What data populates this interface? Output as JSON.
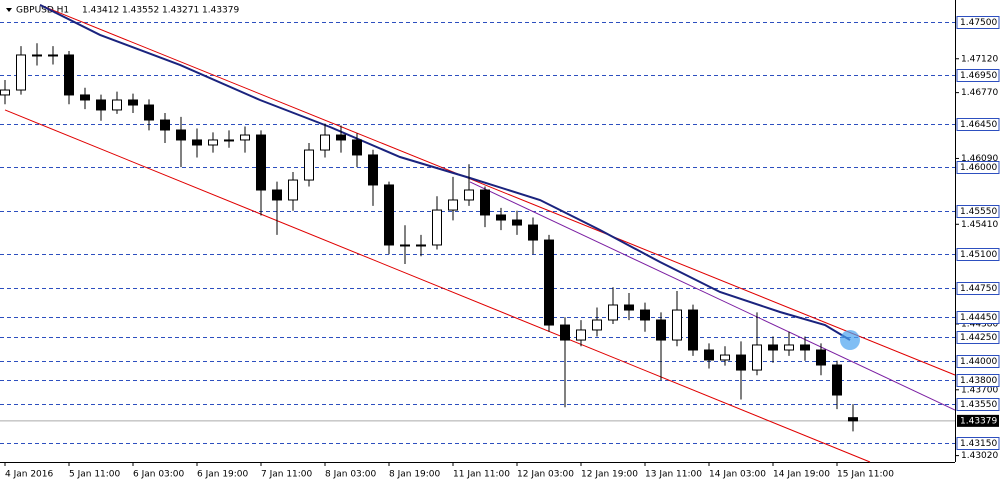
{
  "header": {
    "symbol": "GBPUSD,H1",
    "ohlc": [
      1.43412,
      1.43552,
      1.43271,
      1.43379
    ]
  },
  "chart_data": {
    "type": "candlestick",
    "x": [
      0,
      4,
      8,
      12,
      16,
      20,
      24,
      28,
      32,
      36,
      40,
      44,
      48,
      52,
      56,
      60,
      64,
      68,
      72,
      76,
      80,
      84,
      88,
      92,
      96,
      100,
      104,
      108,
      112,
      116,
      120,
      124,
      128,
      132,
      136,
      140,
      144,
      148,
      152,
      156,
      160,
      164,
      168,
      172,
      176,
      180,
      184,
      188,
      192,
      196,
      200,
      204,
      208,
      212
    ],
    "open": [
      1.46746,
      1.46797,
      1.47159,
      1.47159,
      1.47159,
      1.46746,
      1.46694,
      1.46591,
      1.46694,
      1.46642,
      1.46487,
      1.46384,
      1.46281,
      1.46229,
      1.46281,
      1.46281,
      1.46332,
      1.45764,
      1.45661,
      1.45867,
      1.46177,
      1.46332,
      1.46281,
      1.46126,
      1.45816,
      1.45196,
      1.45196,
      1.45196,
      1.45557,
      1.45661,
      1.45764,
      1.45506,
      1.45454,
      1.45402,
      1.45247,
      1.44369,
      1.44214,
      1.44318,
      1.44421,
      1.44576,
      1.44524,
      1.44421,
      1.44214,
      1.44524,
      1.44111,
      1.44008,
      1.44059,
      1.43904,
      1.44163,
      1.44111,
      1.44163,
      1.44111,
      1.43956,
      1.43412
    ],
    "high": [
      1.469,
      1.4725,
      1.4728,
      1.4725,
      1.472,
      1.4682,
      1.4675,
      1.4678,
      1.4676,
      1.467,
      1.4656,
      1.4652,
      1.464,
      1.4636,
      1.4638,
      1.4642,
      1.4638,
      1.4585,
      1.4595,
      1.4625,
      1.4645,
      1.4643,
      1.4635,
      1.4618,
      1.4585,
      1.454,
      1.453,
      1.457,
      1.459,
      1.4603,
      1.458,
      1.4558,
      1.4555,
      1.4548,
      1.453,
      1.4445,
      1.4442,
      1.4455,
      1.4476,
      1.447,
      1.446,
      1.445,
      1.4472,
      1.4458,
      1.4418,
      1.4415,
      1.442,
      1.445,
      1.4425,
      1.443,
      1.4425,
      1.4418,
      1.44,
      1.43552
    ],
    "low": [
      1.4665,
      1.4675,
      1.4705,
      1.4706,
      1.4665,
      1.466,
      1.4648,
      1.4655,
      1.4656,
      1.4638,
      1.4625,
      1.46,
      1.461,
      1.4615,
      1.462,
      1.4615,
      1.455,
      1.453,
      1.4555,
      1.458,
      1.461,
      1.4615,
      1.46,
      1.456,
      1.451,
      1.45,
      1.4508,
      1.4515,
      1.4545,
      1.456,
      1.4538,
      1.4535,
      1.453,
      1.451,
      1.443,
      1.4352,
      1.4415,
      1.4425,
      1.4438,
      1.4442,
      1.443,
      1.438,
      1.4415,
      1.4405,
      1.4392,
      1.4395,
      1.436,
      1.4385,
      1.4398,
      1.4405,
      1.44,
      1.4385,
      1.435,
      1.43271
    ],
    "close": [
      1.46797,
      1.47159,
      1.47159,
      1.47159,
      1.46746,
      1.46694,
      1.46591,
      1.46694,
      1.46642,
      1.46487,
      1.46384,
      1.46281,
      1.46229,
      1.46281,
      1.46281,
      1.46332,
      1.45764,
      1.45661,
      1.45867,
      1.46177,
      1.46332,
      1.46281,
      1.46126,
      1.45816,
      1.45196,
      1.45196,
      1.45196,
      1.45557,
      1.45661,
      1.45764,
      1.45506,
      1.45454,
      1.45402,
      1.45247,
      1.44369,
      1.44214,
      1.44318,
      1.44421,
      1.44576,
      1.44524,
      1.44421,
      1.44214,
      1.44524,
      1.44111,
      1.44008,
      1.44059,
      1.43904,
      1.44163,
      1.44111,
      1.44163,
      1.44111,
      1.43956,
      1.43646,
      1.43379
    ],
    "ma": {
      "color": "#1a237e",
      "x": [
        8.75,
        23.75,
        43.75,
        63.75,
        81.25,
        98.75,
        116.25,
        133.75,
        148.75,
        163.75,
        178.75,
        193.75,
        205,
        211.25
      ],
      "values": [
        1.47676,
        1.47366,
        1.47056,
        1.46694,
        1.46415,
        1.46105,
        1.45888,
        1.45661,
        1.45351,
        1.4502,
        1.4471,
        1.44504,
        1.44369,
        1.44214
      ]
    },
    "trendlines": [
      {
        "color": "#e00000",
        "x": [
          8.75,
          237.5
        ],
        "values": [
          1.47676,
          1.43853
        ]
      },
      {
        "color": "#e00000",
        "x": [
          0,
          216.25
        ],
        "values": [
          1.46591,
          1.42954
        ]
      },
      {
        "color": "#7b1fa2",
        "x": [
          116.25,
          237.5
        ],
        "values": [
          1.45847,
          1.43491
        ]
      }
    ],
    "xlim": [
      -1.25,
      237.5
    ],
    "ylim": [
      1.42954,
      1.47727
    ],
    "xticks": [
      {
        "value": 0,
        "label": "4 Jan 2016"
      },
      {
        "value": 16,
        "label": "5 Jan 11:00"
      },
      {
        "value": 32,
        "label": "6 Jan 03:00"
      },
      {
        "value": 48,
        "label": "6 Jan 19:00"
      },
      {
        "value": 64,
        "label": "7 Jan 11:00"
      },
      {
        "value": 80,
        "label": "8 Jan 03:00"
      },
      {
        "value": 96,
        "label": "8 Jan 19:00"
      },
      {
        "value": 112,
        "label": "11 Jan 11:00"
      },
      {
        "value": 128,
        "label": "12 Jan 03:00"
      },
      {
        "value": 144,
        "label": "12 Jan 19:00"
      },
      {
        "value": 160,
        "label": "13 Jan 11:00"
      },
      {
        "value": 176,
        "label": "14 Jan 03:00"
      },
      {
        "value": 192,
        "label": "14 Jan 19:00"
      },
      {
        "value": 208,
        "label": "15 Jan 11:00"
      }
    ],
    "yticks": [
      {
        "value": 1.4712,
        "label": "1.47120"
      },
      {
        "value": 1.4677,
        "label": "1.46770"
      },
      {
        "value": 1.4609,
        "label": "1.46090"
      },
      {
        "value": 1.4541,
        "label": "1.45410"
      },
      {
        "value": 1.4438,
        "label": "1.44380"
      },
      {
        "value": 1.437,
        "label": "1.43700"
      },
      {
        "value": 1.4302,
        "label": "1.43020"
      }
    ],
    "levels": [
      {
        "value": 1.475,
        "label": "1.47500"
      },
      {
        "value": 1.4695,
        "label": "1.46950"
      },
      {
        "value": 1.4645,
        "label": "1.46450"
      },
      {
        "value": 1.46,
        "label": "1.46000"
      },
      {
        "value": 1.4555,
        "label": "1.45550"
      },
      {
        "value": 1.451,
        "label": "1.45100"
      },
      {
        "value": 1.4475,
        "label": "1.44750"
      },
      {
        "value": 1.4445,
        "label": "1.44450"
      },
      {
        "value": 1.4425,
        "label": "1.44250"
      },
      {
        "value": 1.44,
        "label": "1.44000"
      },
      {
        "value": 1.438,
        "label": "1.43800"
      },
      {
        "value": 1.4355,
        "label": "1.43550"
      },
      {
        "value": 1.4315,
        "label": "1.43150"
      }
    ],
    "level_color": "#2d4fbf",
    "current_price": 1.43379
  }
}
